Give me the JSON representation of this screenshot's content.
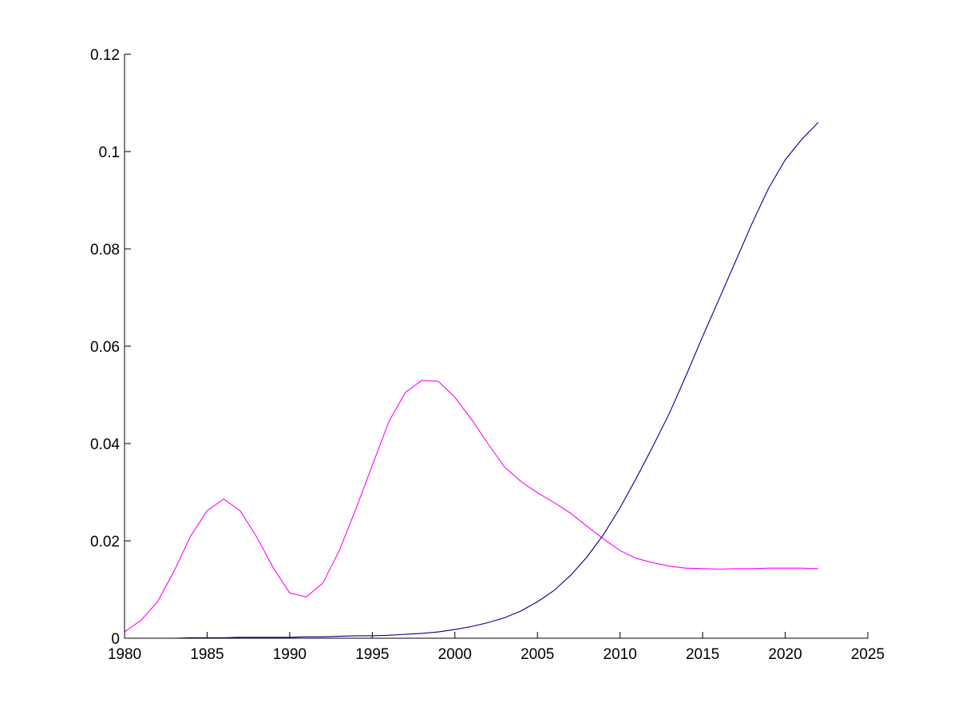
{
  "chart_data": {
    "type": "line",
    "title": "",
    "xlabel": "",
    "ylabel": "",
    "xlim": [
      1980,
      2025
    ],
    "ylim": [
      0,
      0.12
    ],
    "x_ticks": [
      1980,
      1985,
      1990,
      1995,
      2000,
      2005,
      2010,
      2015,
      2020,
      2025
    ],
    "y_ticks": [
      0,
      0.02,
      0.04,
      0.06,
      0.08,
      0.1,
      0.12
    ],
    "x_tick_labels": [
      "1980",
      "1985",
      "1990",
      "1995",
      "2000",
      "2005",
      "2010",
      "2015",
      "2020",
      "2025"
    ],
    "y_tick_labels": [
      "0",
      "0.02",
      "0.04",
      "0.06",
      "0.08",
      "0.1",
      "0.12"
    ],
    "grid": false,
    "legend": "none",
    "background": "#ffffff",
    "x": [
      1980,
      1981,
      1982,
      1983,
      1984,
      1985,
      1986,
      1987,
      1988,
      1989,
      1990,
      1991,
      1992,
      1993,
      1994,
      1995,
      1996,
      1997,
      1998,
      1999,
      2000,
      2001,
      2002,
      2003,
      2004,
      2005,
      2006,
      2007,
      2008,
      2009,
      2010,
      2011,
      2012,
      2013,
      2014,
      2015,
      2016,
      2017,
      2018,
      2019,
      2020,
      2021,
      2022
    ],
    "series": [
      {
        "color": "#ff00ff",
        "values": [
          0.0013,
          0.0037,
          0.0075,
          0.0138,
          0.021,
          0.0262,
          0.0286,
          0.0262,
          0.0208,
          0.0145,
          0.0093,
          0.0085,
          0.0113,
          0.018,
          0.0265,
          0.0355,
          0.0445,
          0.0505,
          0.053,
          0.0528,
          0.0495,
          0.045,
          0.04,
          0.0352,
          0.0322,
          0.0299,
          0.0279,
          0.0257,
          0.023,
          0.0204,
          0.018,
          0.0164,
          0.0155,
          0.0148,
          0.0144,
          0.0143,
          0.0142,
          0.0143,
          0.0143,
          0.0144,
          0.0144,
          0.0144,
          0.0143
        ]
      },
      {
        "color": "#00008b",
        "values": [
          0.0,
          0.0,
          0.0,
          0.0,
          0.0001,
          0.0001,
          0.0001,
          0.0002,
          0.0002,
          0.0002,
          0.0002,
          0.0003,
          0.0003,
          0.0004,
          0.0005,
          0.0005,
          0.0006,
          0.0008,
          0.001,
          0.0013,
          0.0018,
          0.0024,
          0.0032,
          0.0042,
          0.0056,
          0.0075,
          0.0098,
          0.0129,
          0.0167,
          0.0213,
          0.0268,
          0.033,
          0.0395,
          0.0463,
          0.054,
          0.062,
          0.0697,
          0.0775,
          0.0853,
          0.0925,
          0.0983,
          0.1025,
          0.106
        ]
      }
    ]
  }
}
